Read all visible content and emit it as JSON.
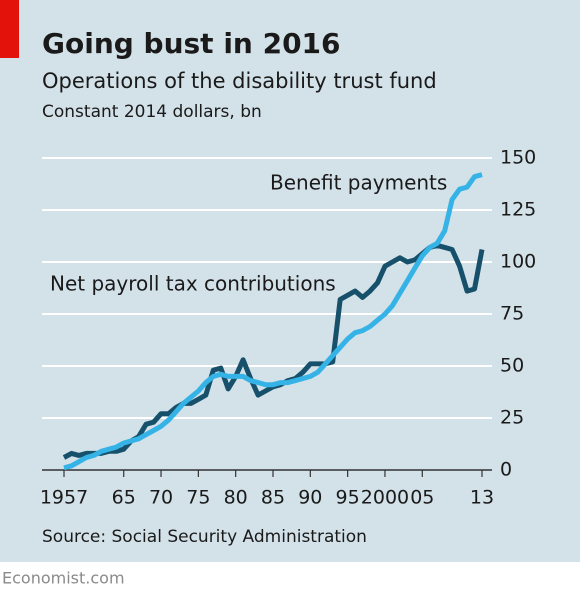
{
  "chart_data": {
    "type": "line",
    "title": "Going bust in 2016",
    "subtitle": "Operations of the disability trust fund",
    "unit": "Constant 2014 dollars, bn",
    "source": "Source: Social Security Administration",
    "footer": "Economist.com",
    "x": [
      1957,
      1958,
      1959,
      1960,
      1961,
      1962,
      1963,
      1964,
      1965,
      1966,
      1967,
      1968,
      1969,
      1970,
      1971,
      1972,
      1973,
      1974,
      1975,
      1976,
      1977,
      1978,
      1979,
      1980,
      1981,
      1982,
      1983,
      1984,
      1985,
      1986,
      1987,
      1988,
      1989,
      1990,
      1991,
      1992,
      1993,
      1994,
      1995,
      1996,
      1997,
      1998,
      1999,
      2000,
      2001,
      2002,
      2003,
      2004,
      2005,
      2006,
      2007,
      2008,
      2009,
      2010,
      2011,
      2012,
      2013
    ],
    "series": [
      {
        "name": "Net payroll tax contributions",
        "color": "#17506b",
        "values": [
          6,
          8,
          7,
          8,
          8,
          8,
          9,
          9,
          10,
          14,
          16,
          22,
          23,
          27,
          27,
          30,
          32,
          32,
          34,
          36,
          48,
          49,
          39,
          45,
          53,
          44,
          36,
          38,
          40,
          41,
          43,
          44,
          47,
          51,
          51,
          51,
          52,
          82,
          84,
          86,
          83,
          86,
          90,
          98,
          100,
          102,
          100,
          101,
          104,
          107,
          108,
          107,
          106,
          98,
          86,
          87,
          106
        ]
      },
      {
        "name": "Benefit payments",
        "color": "#35b3e6",
        "values": [
          1,
          2,
          4,
          6,
          7,
          9,
          10,
          11,
          13,
          14,
          15,
          17,
          19,
          21,
          24,
          28,
          32,
          35,
          38,
          42,
          45,
          46,
          45,
          45,
          45,
          43,
          42,
          41,
          41,
          42,
          42,
          43,
          44,
          45,
          47,
          51,
          55,
          59,
          63,
          66,
          67,
          69,
          72,
          75,
          79,
          85,
          91,
          97,
          103,
          107,
          109,
          115,
          130,
          135,
          136,
          141,
          142
        ]
      }
    ],
    "xlim": [
      1957,
      2013
    ],
    "xticks": [
      1957,
      {
        "value": 1965,
        "label": "65"
      },
      {
        "value": 1970,
        "label": "70"
      },
      {
        "value": 1975,
        "label": "75"
      },
      {
        "value": 1980,
        "label": "80"
      },
      {
        "value": 1985,
        "label": "85"
      },
      {
        "value": 1990,
        "label": "90"
      },
      {
        "value": 1995,
        "label": "95"
      },
      2000,
      {
        "value": 2005,
        "label": "05"
      },
      {
        "value": 2013,
        "label": "13"
      }
    ],
    "ylim": [
      0,
      150
    ],
    "yticks": [
      0,
      25,
      50,
      75,
      100,
      125,
      150
    ],
    "grid": true
  }
}
